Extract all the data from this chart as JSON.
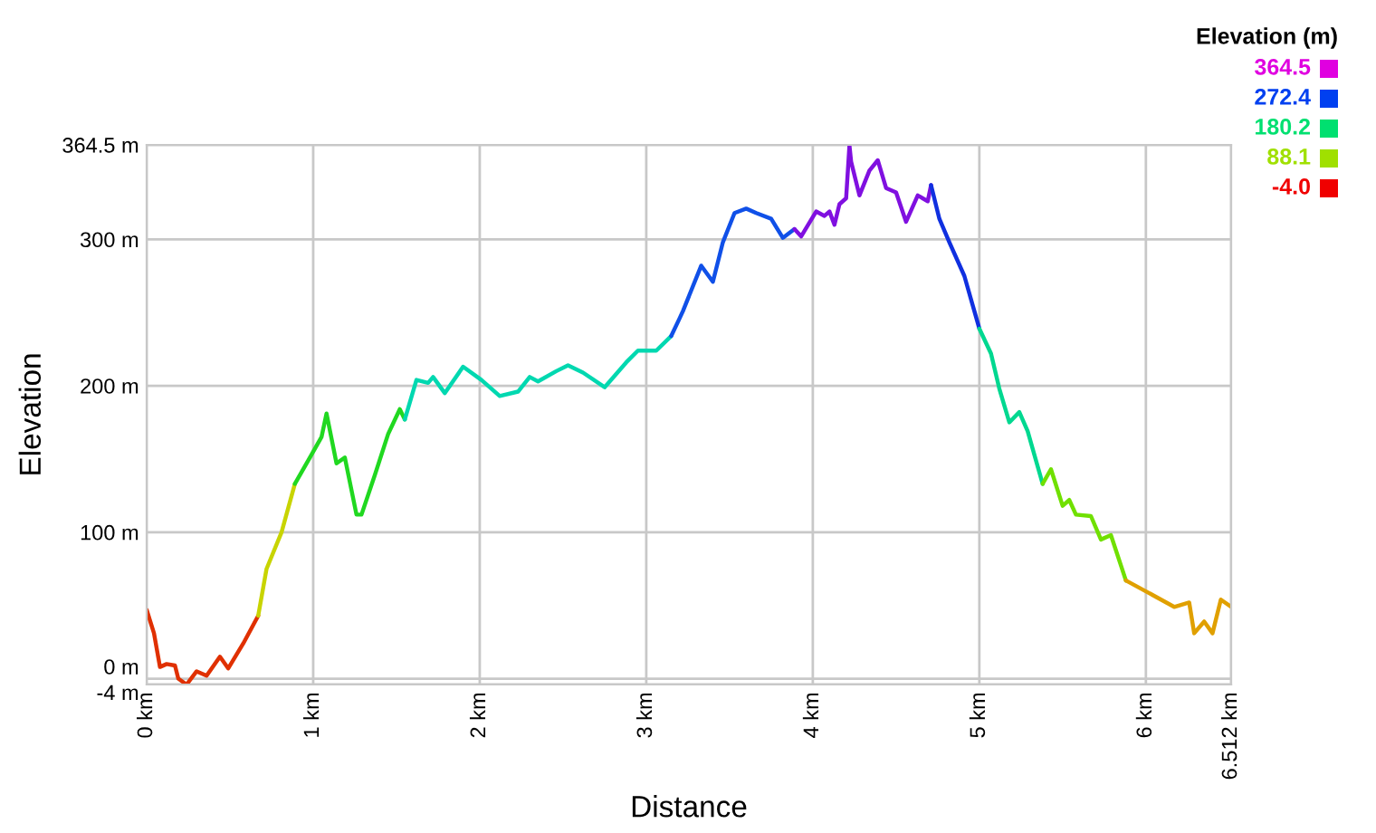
{
  "chart_data": {
    "type": "line",
    "xlabel": "Distance",
    "ylabel": "Elevation",
    "series": [
      {
        "color": "#e03000",
        "x": [
          0,
          0.044,
          0.08,
          0.12,
          0.17,
          0.19,
          0.24,
          0.3,
          0.36,
          0.44,
          0.49,
          0.58,
          0.67
        ],
        "values": [
          47,
          31,
          8,
          10,
          9,
          0,
          -4,
          5,
          2,
          15,
          7,
          24,
          43
        ]
      },
      {
        "color": "#c8d400",
        "x": [
          0.67,
          0.72,
          0.81,
          0.89
        ],
        "values": [
          43,
          75,
          100,
          133
        ]
      },
      {
        "color": "#20d820",
        "x": [
          0.89,
          0.97,
          1.05,
          1.08,
          1.14,
          1.19,
          1.26,
          1.29,
          1.37,
          1.45,
          1.52,
          1.55
        ],
        "values": [
          133,
          149,
          165,
          181,
          147,
          151,
          112,
          112,
          139,
          167,
          184,
          177
        ]
      },
      {
        "color": "#00d8b0",
        "x": [
          1.55,
          1.62,
          1.69,
          1.72,
          1.79,
          1.9,
          2.01,
          2.12,
          2.23,
          2.3,
          2.35,
          2.46,
          2.53,
          2.62,
          2.75,
          2.88,
          2.95,
          3.06,
          3.15
        ],
        "values": [
          177,
          204,
          202,
          206,
          195,
          213,
          204,
          193,
          196,
          206,
          203,
          210,
          214,
          209,
          199,
          216,
          224,
          224,
          234
        ]
      },
      {
        "color": "#1050e8",
        "x": [
          3.15,
          3.2,
          3.22,
          3.33,
          3.4,
          3.46,
          3.53,
          3.6,
          3.66,
          3.75,
          3.82,
          3.89
        ],
        "values": [
          234,
          246,
          251,
          282,
          271,
          298,
          318,
          321,
          318,
          314,
          301,
          307
        ]
      },
      {
        "color": "#8010e0",
        "x": [
          3.89,
          3.93,
          4.02,
          4.07,
          4.1,
          4.13,
          4.16,
          4.2,
          4.22,
          4.23,
          4.28,
          4.34,
          4.39,
          4.44,
          4.5,
          4.56,
          4.63,
          4.69,
          4.71
        ],
        "values": [
          307,
          302,
          319,
          316,
          319,
          310,
          324,
          328,
          364,
          353,
          330,
          347,
          354,
          335,
          332,
          312,
          330,
          326,
          337
        ]
      },
      {
        "color": "#1030e0",
        "x": [
          4.71,
          4.76,
          4.82,
          4.91,
          4.96,
          5.0
        ],
        "values": [
          337,
          314,
          298,
          275,
          255,
          239
        ]
      },
      {
        "color": "#00d890",
        "x": [
          5.0,
          5.07,
          5.12,
          5.18,
          5.24,
          5.29,
          5.38
        ],
        "values": [
          239,
          222,
          198,
          175,
          182,
          169,
          133
        ]
      },
      {
        "color": "#70e000",
        "x": [
          5.38,
          5.43,
          5.5,
          5.54,
          5.58,
          5.67,
          5.73,
          5.79,
          5.88
        ],
        "values": [
          133,
          143,
          118,
          122,
          112,
          111,
          95,
          98,
          67
        ]
      },
      {
        "color": "#e0a000",
        "x": [
          5.88,
          6.01,
          6.17,
          6.26,
          6.29,
          6.35,
          6.4,
          6.45,
          6.512
        ],
        "values": [
          67,
          59,
          49,
          52,
          31,
          39,
          31,
          54,
          49
        ]
      }
    ],
    "xlim": [
      0,
      6.512
    ],
    "xticks": [
      {
        "value": 0,
        "label": "0 km"
      },
      {
        "value": 1,
        "label": "1 km"
      },
      {
        "value": 2,
        "label": "2 km"
      },
      {
        "value": 3,
        "label": "3 km"
      },
      {
        "value": 4,
        "label": "4 km"
      },
      {
        "value": 5,
        "label": "5 km"
      },
      {
        "value": 6,
        "label": "6 km"
      },
      {
        "value": 6.512,
        "label": "6.512 km"
      }
    ],
    "ylim": [
      -4,
      364.5
    ],
    "yticks": [
      {
        "value": -4,
        "label": "-4 m"
      },
      {
        "value": 0,
        "label": "0 m"
      },
      {
        "value": 100,
        "label": "100 m"
      },
      {
        "value": 200,
        "label": "200 m"
      },
      {
        "value": 300,
        "label": "300 m"
      },
      {
        "value": 364.5,
        "label": "364.5 m"
      }
    ],
    "grid": true,
    "clabel": "Elevation (m)",
    "annotations": [
      "364.5",
      "272.4",
      "180.2",
      "88.1",
      "-4.0"
    ],
    "colors": [
      "#e000e0",
      "#0040f0",
      "#00e070",
      "#a0e000",
      "#f00000"
    ],
    "marker": "none",
    "line_style": "solid"
  }
}
